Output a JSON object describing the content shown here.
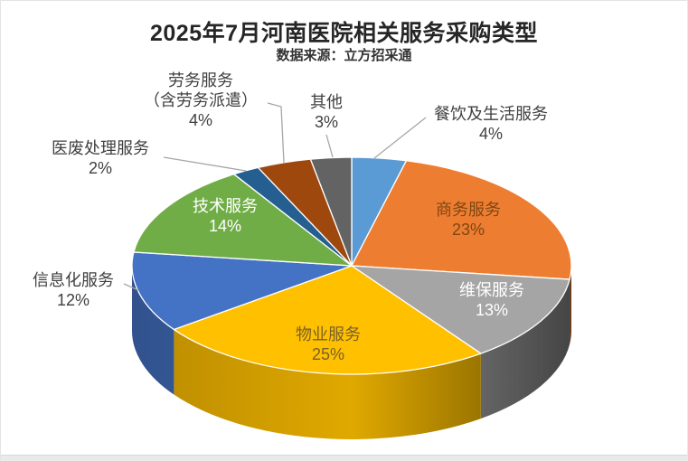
{
  "header": {
    "title": "2025年7月河南医院相关服务采购类型",
    "subtitle": "数据来源：立方招采通"
  },
  "chart_data": {
    "type": "pie",
    "is_3d": true,
    "title": "2025年7月河南医院相关服务采购类型",
    "subtitle": "数据来源：立方招采通",
    "direction": "clockwise",
    "start_angle_deg": 0,
    "unit": "%",
    "legend": "none",
    "leader_line_color": "#A6A6A6",
    "categories": [
      "餐饮及生活服务",
      "商务服务",
      "维保服务",
      "物业服务",
      "信息化服务",
      "技术服务",
      "医废处理服务",
      "劳务服务（含劳务派遣）",
      "其他"
    ],
    "values": [
      4,
      23,
      13,
      25,
      12,
      14,
      2,
      4,
      3
    ],
    "slices": [
      {
        "name": "餐饮及生活服务",
        "value": 4,
        "pct_label": "4%",
        "color": "#5B9BD5",
        "label_placement": "outside",
        "label_color": "#404040",
        "label_lines": [
          "餐饮及生活服务",
          "4%"
        ]
      },
      {
        "name": "商务服务",
        "value": 23,
        "pct_label": "23%",
        "color": "#ED7D31",
        "label_placement": "inside",
        "label_color": "#7F4712",
        "label_lines": [
          "商务服务",
          "23%"
        ]
      },
      {
        "name": "维保服务",
        "value": 13,
        "pct_label": "13%",
        "color": "#A5A5A5",
        "label_placement": "inside",
        "label_color": "#FFFFFF",
        "label_lines": [
          "维保服务",
          "13%"
        ]
      },
      {
        "name": "物业服务",
        "value": 25,
        "pct_label": "25%",
        "color": "#FFC000",
        "label_placement": "inside",
        "label_color": "#7A6128",
        "label_lines": [
          "物业服务",
          "25%"
        ]
      },
      {
        "name": "信息化服务",
        "value": 12,
        "pct_label": "12%",
        "color": "#4472C4",
        "label_placement": "outside",
        "label_color": "#404040",
        "label_lines": [
          "信息化服务",
          "12%"
        ]
      },
      {
        "name": "技术服务",
        "value": 14,
        "pct_label": "14%",
        "color": "#70AD47",
        "label_placement": "inside",
        "label_color": "#FFFFFF",
        "label_lines": [
          "技术服务",
          "14%"
        ]
      },
      {
        "name": "医废处理服务",
        "value": 2,
        "pct_label": "2%",
        "color": "#255E91",
        "label_placement": "outside",
        "label_color": "#404040",
        "label_lines": [
          "医废处理服务",
          "2%"
        ]
      },
      {
        "name": "劳务服务（含劳务派遣）",
        "value": 4,
        "pct_label": "4%",
        "color": "#9E480E",
        "label_placement": "outside",
        "label_color": "#404040",
        "label_lines": [
          "劳务服务",
          "（含劳务派遣）",
          "4%"
        ]
      },
      {
        "name": "其他",
        "value": 3,
        "pct_label": "3%",
        "color": "#636363",
        "label_placement": "outside",
        "label_color": "#404040",
        "label_lines": [
          "其他",
          "3%"
        ]
      }
    ]
  }
}
